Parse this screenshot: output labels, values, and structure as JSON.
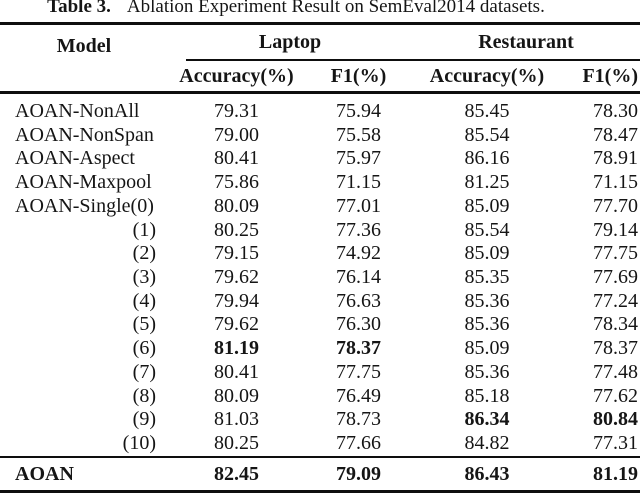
{
  "caption": {
    "label": "Table 3.",
    "text": "Ablation Experiment Result on SemEval2014 datasets."
  },
  "table": {
    "model_header": "Model",
    "group_headers": [
      "Laptop",
      "Restaurant"
    ],
    "sub_headers": [
      "Accuracy(%)",
      "F1(%)",
      "Accuracy(%)",
      "F1(%)"
    ],
    "rows": [
      {
        "model": "AOAN-NonAll",
        "values": [
          "79.31",
          "75.94",
          "85.45",
          "78.30"
        ]
      },
      {
        "model": "AOAN-NonSpan",
        "values": [
          "79.00",
          "75.58",
          "85.54",
          "78.47"
        ]
      },
      {
        "model": "AOAN-Aspect",
        "values": [
          "80.41",
          "75.97",
          "86.16",
          "78.91"
        ]
      },
      {
        "model": "AOAN-Maxpool",
        "values": [
          "75.86",
          "71.15",
          "81.25",
          "71.15"
        ]
      },
      {
        "model": "AOAN-Single(0)",
        "values": [
          "80.09",
          "77.01",
          "85.09",
          "77.70"
        ]
      },
      {
        "model": "(1)",
        "values": [
          "80.25",
          "77.36",
          "85.54",
          "79.14"
        ]
      },
      {
        "model": "(2)",
        "values": [
          "79.15",
          "74.92",
          "85.09",
          "77.75"
        ]
      },
      {
        "model": "(3)",
        "values": [
          "79.62",
          "76.14",
          "85.35",
          "77.69"
        ]
      },
      {
        "model": "(4)",
        "values": [
          "79.94",
          "76.63",
          "85.36",
          "77.24"
        ]
      },
      {
        "model": "(5)",
        "values": [
          "79.62",
          "76.30",
          "85.36",
          "78.34"
        ]
      },
      {
        "model": "(6)",
        "values": [
          "81.19",
          "78.37",
          "85.09",
          "78.37"
        ]
      },
      {
        "model": "(7)",
        "values": [
          "80.41",
          "77.75",
          "85.36",
          "77.48"
        ]
      },
      {
        "model": "(8)",
        "values": [
          "80.09",
          "76.49",
          "85.18",
          "77.62"
        ]
      },
      {
        "model": "(9)",
        "values": [
          "81.03",
          "78.73",
          "86.34",
          "80.84"
        ]
      },
      {
        "model": "(10)",
        "values": [
          "80.25",
          "77.66",
          "84.82",
          "77.31"
        ]
      }
    ],
    "footer": {
      "model": "AOAN",
      "values": [
        "82.45",
        "79.09",
        "86.43",
        "81.19"
      ]
    }
  }
}
